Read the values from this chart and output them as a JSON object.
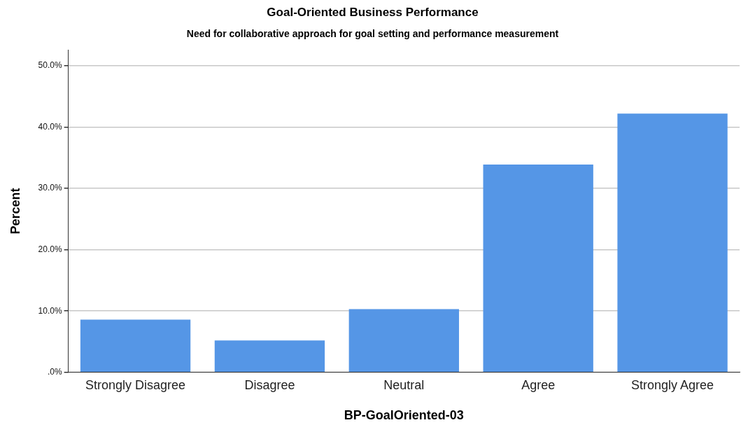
{
  "chart_data": {
    "type": "bar",
    "title": "Goal-Oriented Business Performance",
    "subtitle": "Need for collaborative approach for goal setting and performance measurement",
    "xlabel": "BP-GoalOriented-03",
    "ylabel": "Percent",
    "categories": [
      "Strongly Disagree",
      "Disagree",
      "Neutral",
      "Agree",
      "Strongly Agree"
    ],
    "values": [
      8.6,
      5.2,
      10.3,
      33.9,
      42.2
    ],
    "color": "#5596e6",
    "ylim": [
      0,
      52.6
    ],
    "yticks": [
      {
        "value": 0,
        "label": ".0%"
      },
      {
        "value": 10,
        "label": "10.0%"
      },
      {
        "value": 20,
        "label": "20.0%"
      },
      {
        "value": 30,
        "label": "30.0%"
      },
      {
        "value": 40,
        "label": "40.0%"
      },
      {
        "value": 50,
        "label": "50.0%"
      }
    ],
    "grid": "y",
    "legend": false
  }
}
